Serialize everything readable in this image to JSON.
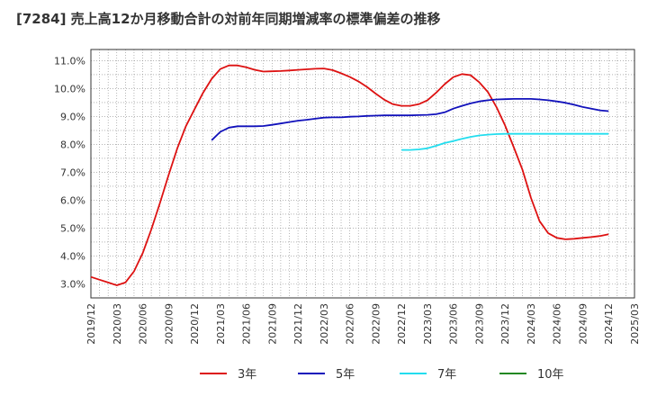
{
  "chart_data": {
    "type": "line",
    "title": "[7284]  売上高12か月移動合計の対前年同期増減率の標準偏差の推移",
    "xlabel": "",
    "ylabel": "",
    "ylim": [
      2.5,
      11.4
    ],
    "yticks": [
      3.0,
      4.0,
      5.0,
      6.0,
      7.0,
      8.0,
      9.0,
      10.0,
      11.0
    ],
    "ytick_labels": [
      "3.0%",
      "4.0%",
      "5.0%",
      "6.0%",
      "7.0%",
      "8.0%",
      "9.0%",
      "10.0%",
      "11.0%"
    ],
    "x_start": "2019/12",
    "x_end": "2025/03",
    "xtick_labels": [
      "2019/12",
      "2020/03",
      "2020/06",
      "2020/09",
      "2020/12",
      "2021/03",
      "2021/06",
      "2021/09",
      "2021/12",
      "2022/03",
      "2022/06",
      "2022/09",
      "2022/12",
      "2023/03",
      "2023/06",
      "2023/09",
      "2023/12",
      "2024/03",
      "2024/06",
      "2024/09",
      "2024/12",
      "2025/03"
    ],
    "grid": true,
    "legend_position": "bottom",
    "series": [
      {
        "name": "3年",
        "color": "#dd1111",
        "points": [
          [
            "2019/12",
            3.25
          ],
          [
            "2020/01",
            3.15
          ],
          [
            "2020/02",
            3.05
          ],
          [
            "2020/03",
            2.95
          ],
          [
            "2020/04",
            3.05
          ],
          [
            "2020/05",
            3.45
          ],
          [
            "2020/06",
            4.1
          ],
          [
            "2020/07",
            4.95
          ],
          [
            "2020/08",
            5.9
          ],
          [
            "2020/09",
            6.9
          ],
          [
            "2020/10",
            7.85
          ],
          [
            "2020/11",
            8.65
          ],
          [
            "2020/12",
            9.25
          ],
          [
            "2021/01",
            9.85
          ],
          [
            "2021/02",
            10.35
          ],
          [
            "2021/03",
            10.7
          ],
          [
            "2021/04",
            10.83
          ],
          [
            "2021/05",
            10.83
          ],
          [
            "2021/06",
            10.76
          ],
          [
            "2021/07",
            10.67
          ],
          [
            "2021/08",
            10.61
          ],
          [
            "2021/09",
            10.62
          ],
          [
            "2021/10",
            10.63
          ],
          [
            "2021/11",
            10.65
          ],
          [
            "2021/12",
            10.67
          ],
          [
            "2021/13",
            10.69
          ],
          [
            "2022/02",
            10.71
          ],
          [
            "2022/03",
            10.72
          ],
          [
            "2022/04",
            10.66
          ],
          [
            "2022/05",
            10.55
          ],
          [
            "2022/06",
            10.42
          ],
          [
            "2022/07",
            10.26
          ],
          [
            "2022/08",
            10.06
          ],
          [
            "2022/09",
            9.82
          ],
          [
            "2022/10",
            9.6
          ],
          [
            "2022/11",
            9.44
          ],
          [
            "2022/12",
            9.38
          ],
          [
            "2023/01",
            9.38
          ],
          [
            "2023/02",
            9.44
          ],
          [
            "2023/03",
            9.58
          ],
          [
            "2023/04",
            9.85
          ],
          [
            "2023/05",
            10.16
          ],
          [
            "2023/06",
            10.41
          ],
          [
            "2023/07",
            10.52
          ],
          [
            "2023/08",
            10.48
          ],
          [
            "2023/09",
            10.23
          ],
          [
            "2023/10",
            9.88
          ],
          [
            "2023/11",
            9.34
          ],
          [
            "2023/12",
            8.68
          ],
          [
            "2024/01",
            7.9
          ],
          [
            "2024/02",
            7.1
          ],
          [
            "2024/03",
            6.08
          ],
          [
            "2024/04",
            5.25
          ],
          [
            "2024/05",
            4.82
          ],
          [
            "2024/06",
            4.65
          ],
          [
            "2024/07",
            4.6
          ],
          [
            "2024/08",
            4.62
          ],
          [
            "2024/09",
            4.65
          ],
          [
            "2024/10",
            4.68
          ],
          [
            "2024/11",
            4.72
          ],
          [
            "2024/12",
            4.78
          ]
        ]
      },
      {
        "name": "5年",
        "color": "#1111bb",
        "points": [
          [
            "2021/02",
            8.15
          ],
          [
            "2021/03",
            8.45
          ],
          [
            "2021/04",
            8.6
          ],
          [
            "2021/05",
            8.65
          ],
          [
            "2021/06",
            8.65
          ],
          [
            "2021/07",
            8.65
          ],
          [
            "2021/08",
            8.66
          ],
          [
            "2021/09",
            8.7
          ],
          [
            "2021/10",
            8.75
          ],
          [
            "2021/11",
            8.8
          ],
          [
            "2021/12",
            8.85
          ],
          [
            "2022/01",
            8.88
          ],
          [
            "2022/02",
            8.92
          ],
          [
            "2022/03",
            8.96
          ],
          [
            "2022/04",
            8.97
          ],
          [
            "2022/05",
            8.97
          ],
          [
            "2022/06",
            8.99
          ],
          [
            "2022/07",
            9.0
          ],
          [
            "2022/08",
            9.02
          ],
          [
            "2022/09",
            9.03
          ],
          [
            "2022/10",
            9.04
          ],
          [
            "2022/11",
            9.04
          ],
          [
            "2022/12",
            9.04
          ],
          [
            "2023/01",
            9.04
          ],
          [
            "2023/02",
            9.05
          ],
          [
            "2023/03",
            9.06
          ],
          [
            "2023/04",
            9.08
          ],
          [
            "2023/05",
            9.15
          ],
          [
            "2023/06",
            9.28
          ],
          [
            "2023/07",
            9.38
          ],
          [
            "2023/08",
            9.47
          ],
          [
            "2023/09",
            9.54
          ],
          [
            "2023/10",
            9.58
          ],
          [
            "2023/11",
            9.61
          ],
          [
            "2023/12",
            9.62
          ],
          [
            "2024/01",
            9.63
          ],
          [
            "2024/02",
            9.63
          ],
          [
            "2024/03",
            9.63
          ],
          [
            "2024/04",
            9.61
          ],
          [
            "2024/05",
            9.58
          ],
          [
            "2024/06",
            9.54
          ],
          [
            "2024/07",
            9.49
          ],
          [
            "2024/08",
            9.42
          ],
          [
            "2024/09",
            9.34
          ],
          [
            "2024/10",
            9.28
          ],
          [
            "2024/11",
            9.22
          ],
          [
            "2024/12",
            9.19
          ]
        ]
      },
      {
        "name": "7年",
        "color": "#22ddee",
        "points": [
          [
            "2022/12",
            7.8
          ],
          [
            "2023/01",
            7.8
          ],
          [
            "2023/02",
            7.82
          ],
          [
            "2023/03",
            7.86
          ],
          [
            "2023/04",
            7.95
          ],
          [
            "2023/05",
            8.05
          ],
          [
            "2023/06",
            8.12
          ],
          [
            "2023/07",
            8.2
          ],
          [
            "2023/08",
            8.27
          ],
          [
            "2023/09",
            8.32
          ],
          [
            "2023/10",
            8.35
          ],
          [
            "2023/11",
            8.37
          ],
          [
            "2023/12",
            8.38
          ],
          [
            "2024/01",
            8.38
          ],
          [
            "2024/02",
            8.38
          ],
          [
            "2024/03",
            8.38
          ],
          [
            "2024/04",
            8.38
          ],
          [
            "2024/05",
            8.38
          ],
          [
            "2024/06",
            8.38
          ],
          [
            "2024/07",
            8.38
          ],
          [
            "2024/08",
            8.38
          ],
          [
            "2024/09",
            8.38
          ],
          [
            "2024/10",
            8.38
          ],
          [
            "2024/11",
            8.38
          ],
          [
            "2024/12",
            8.38
          ]
        ]
      },
      {
        "name": "10年",
        "color": "#228822",
        "points": []
      }
    ]
  }
}
